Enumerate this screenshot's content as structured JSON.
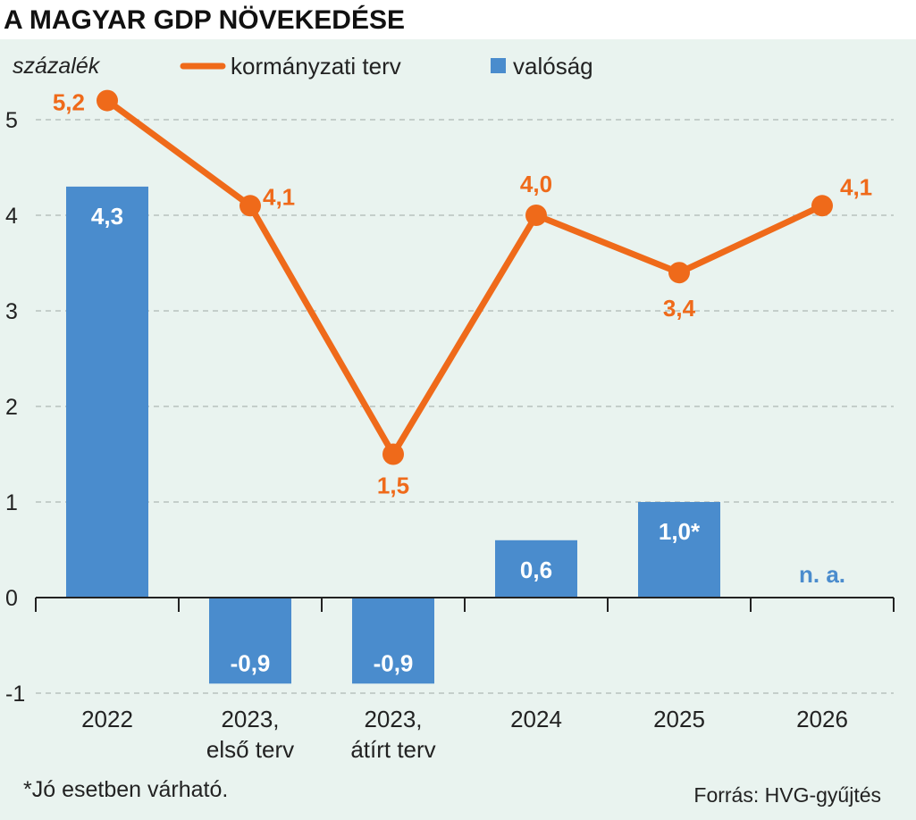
{
  "title": "A MAGYAR GDP NÖVEKEDÉSE",
  "footnote": "*Jó esetben várható.",
  "source": "Forrás: HVG-gyűjtés",
  "chart_data": {
    "type": "bar",
    "title": "A MAGYAR GDP NÖVEKEDÉSE",
    "ylabel": "százalék",
    "xlabel": "",
    "ylim": [
      -1,
      5.4
    ],
    "yticks": [
      -1,
      0,
      1,
      2,
      3,
      4,
      5
    ],
    "grid": true,
    "legend_placement": "top",
    "categories": [
      [
        "2022"
      ],
      [
        "2023,",
        "első terv"
      ],
      [
        "2023,",
        "átírt terv"
      ],
      [
        "2024"
      ],
      [
        "2025"
      ],
      [
        "2026"
      ]
    ],
    "series": [
      {
        "name": "kormányzati terv",
        "type": "line",
        "color": "#ef6a1a",
        "values": [
          5.2,
          4.1,
          1.5,
          4.0,
          3.4,
          4.1
        ],
        "labels": [
          "5,2",
          "4,1",
          "1,5",
          "4,0",
          "3,4",
          "4,1"
        ]
      },
      {
        "name": "valóság",
        "type": "bar",
        "color": "#4a8ccd",
        "values": [
          4.3,
          -0.9,
          -0.9,
          0.6,
          1.0,
          null
        ],
        "labels": [
          "4,3",
          "-0,9",
          "-0,9",
          "0,6",
          "1,0*",
          "n. a."
        ]
      }
    ],
    "colors": {
      "background": "#e9f3ef",
      "grid": "#b8c2be",
      "axis": "#222222"
    }
  }
}
